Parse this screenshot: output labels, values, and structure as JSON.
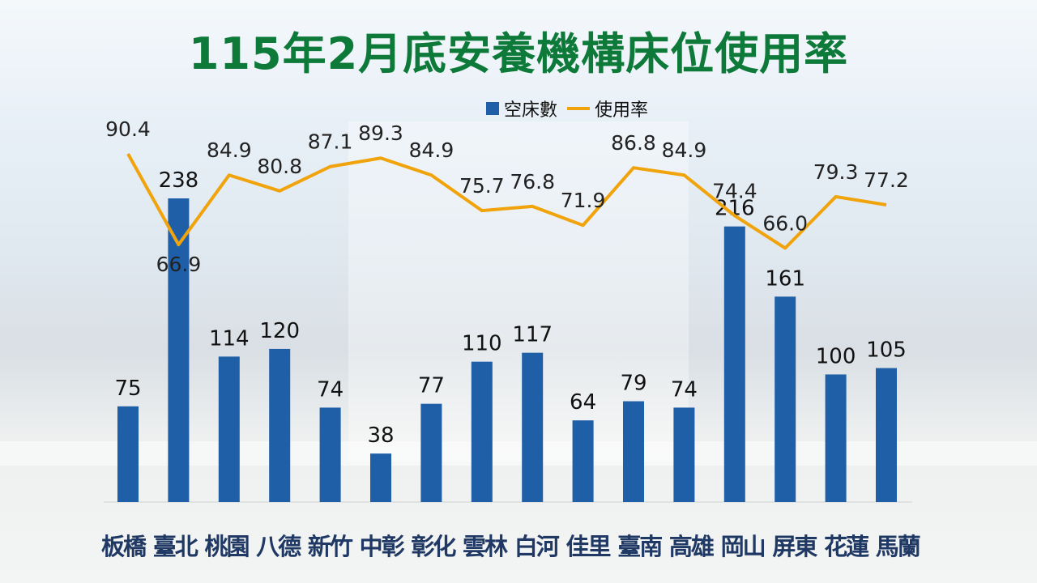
{
  "chart_data": {
    "type": "bar+line",
    "title": "115年2月底安養機構床位使用率",
    "categories": [
      "板橋",
      "臺北",
      "桃園",
      "八德",
      "新竹",
      "中彰",
      "彰化",
      "雲林",
      "白河",
      "佳里",
      "臺南",
      "高雄",
      "岡山",
      "屏東",
      "花蓮",
      "馬蘭"
    ],
    "series": [
      {
        "name": "空床數",
        "type": "bar",
        "color": "#1f5fa8",
        "values": [
          75,
          238,
          114,
          120,
          74,
          38,
          77,
          110,
          117,
          64,
          79,
          74,
          216,
          161,
          100,
          105
        ]
      },
      {
        "name": "使用率",
        "type": "line",
        "color": "#f0a30a",
        "values": [
          90.4,
          66.9,
          84.9,
          80.8,
          87.1,
          89.3,
          84.9,
          75.7,
          76.8,
          71.9,
          86.8,
          84.9,
          74.4,
          66.0,
          79.3,
          77.2
        ]
      }
    ],
    "legend_position": "top-center",
    "grid": false
  }
}
